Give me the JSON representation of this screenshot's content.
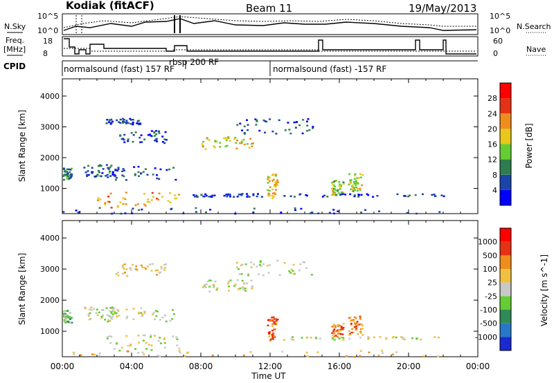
{
  "header": {
    "station": "Kodiak (fitACF)",
    "beam": "Beam 11",
    "date": "19/May/2013"
  },
  "strips": {
    "nsky_label": "N.Sky",
    "nsky_ticks": [
      "10^5",
      "10^0"
    ],
    "nsearch_label": "N.Search",
    "freq_label_1": "Freq.",
    "freq_label_2": "[MHz]",
    "freq_ticks": [
      "18",
      "8"
    ],
    "nave_label": "Nave",
    "nave_ticks": [
      "60",
      "0"
    ],
    "cpid_label": "CPID",
    "cpid_segments": [
      "normalsound (fast) 157 RF",
      "rbsp 200 RF",
      "normalsound (fast) -157 RF"
    ]
  },
  "chart_data": [
    {
      "type": "heatmap",
      "panel": "power",
      "ylabel": "Slant Range [km]",
      "y_ticks": [
        1000,
        2000,
        3000,
        4000
      ],
      "ylim": [
        180,
        4560
      ],
      "x_hours": [
        0,
        24
      ],
      "colorbar_label": "Power [dB]",
      "colorbar_ticks": [
        "4",
        "8",
        "12",
        "16",
        "20",
        "24",
        "28"
      ],
      "colors": [
        "#0000ff",
        "#1a44a8",
        "#2e7d4f",
        "#66cc33",
        "#e8c81a",
        "#f08c1e",
        "#e63214",
        "#ff0000"
      ],
      "regions": [
        {
          "t0": 0.0,
          "t1": 0.5,
          "r0": 1300,
          "r1": 1700,
          "v": 0.3
        },
        {
          "t0": 1.2,
          "t1": 3.2,
          "r0": 1400,
          "r1": 1800,
          "v": 0.25
        },
        {
          "t0": 2.0,
          "t1": 6.7,
          "r0": 400,
          "r1": 900,
          "v": 0.65
        },
        {
          "t0": 2.5,
          "t1": 6.5,
          "r0": 1300,
          "r1": 1800,
          "v": 0.2
        },
        {
          "t0": 3.0,
          "t1": 6.0,
          "r0": 2500,
          "r1": 2900,
          "v": 0.2
        },
        {
          "t0": 2.5,
          "t1": 4.5,
          "r0": 3100,
          "r1": 3300,
          "v": 0.15
        },
        {
          "t0": 8.0,
          "t1": 11.0,
          "r0": 2300,
          "r1": 2700,
          "v": 0.55
        },
        {
          "t0": 10.0,
          "t1": 14.5,
          "r0": 2800,
          "r1": 3300,
          "v": 0.2
        },
        {
          "t0": 11.8,
          "t1": 12.4,
          "r0": 700,
          "r1": 1500,
          "v": 0.6
        },
        {
          "t0": 15.5,
          "t1": 16.2,
          "r0": 800,
          "r1": 1300,
          "v": 0.5
        },
        {
          "t0": 16.5,
          "t1": 17.3,
          "r0": 900,
          "r1": 1500,
          "v": 0.5
        },
        {
          "t0": 7.5,
          "t1": 11.5,
          "r0": 750,
          "r1": 850,
          "v": 0.15
        },
        {
          "t0": 12.5,
          "t1": 22.0,
          "r0": 750,
          "r1": 850,
          "v": 0.15
        },
        {
          "t0": 0.0,
          "t1": 22.0,
          "r0": 200,
          "r1": 400,
          "v": 0.15
        }
      ]
    },
    {
      "type": "heatmap",
      "panel": "velocity",
      "xlabel": "Time UT",
      "ylabel": "Slant Range [km]",
      "y_ticks": [
        1000,
        2000,
        3000,
        4000
      ],
      "ylim": [
        180,
        4560
      ],
      "x_hours": [
        0,
        24
      ],
      "x_ticks": [
        "00:00",
        "04:00",
        "08:00",
        "12:00",
        "16:00",
        "20:00",
        "00:00"
      ],
      "colorbar_label": "Velocity [m s^-1]",
      "colorbar_ticks": [
        "1000",
        "500",
        "100",
        "25",
        "-25",
        "-100",
        "-500",
        "-1000"
      ],
      "colors": [
        "#1a2ad0",
        "#2878c8",
        "#2e8b57",
        "#66cc33",
        "#c8c8c8",
        "#f0c040",
        "#f08c1e",
        "#e63214",
        "#ff0000"
      ],
      "regions": [
        {
          "t0": 0.0,
          "t1": 0.5,
          "r0": 1300,
          "r1": 1700,
          "v": 0.4
        },
        {
          "t0": 1.2,
          "t1": 3.2,
          "r0": 1400,
          "r1": 1800,
          "v": 0.5
        },
        {
          "t0": 2.5,
          "t1": 6.7,
          "r0": 400,
          "r1": 900,
          "v": 0.5
        },
        {
          "t0": 2.5,
          "t1": 6.5,
          "r0": 1300,
          "r1": 1800,
          "v": 0.5
        },
        {
          "t0": 3.0,
          "t1": 6.0,
          "r0": 2800,
          "r1": 3200,
          "v": 0.6
        },
        {
          "t0": 8.0,
          "t1": 11.0,
          "r0": 2300,
          "r1": 2700,
          "v": 0.5
        },
        {
          "t0": 10.0,
          "t1": 14.5,
          "r0": 2800,
          "r1": 3300,
          "v": 0.5
        },
        {
          "t0": 11.8,
          "t1": 12.4,
          "r0": 700,
          "r1": 1500,
          "v": 0.75
        },
        {
          "t0": 15.5,
          "t1": 16.2,
          "r0": 800,
          "r1": 1300,
          "v": 0.75
        },
        {
          "t0": 16.5,
          "t1": 17.3,
          "r0": 900,
          "r1": 1500,
          "v": 0.75
        },
        {
          "t0": 12.5,
          "t1": 22.0,
          "r0": 750,
          "r1": 850,
          "v": 0.5
        },
        {
          "t0": 0.0,
          "t1": 22.0,
          "r0": 200,
          "r1": 400,
          "v": 0.6
        }
      ]
    }
  ]
}
